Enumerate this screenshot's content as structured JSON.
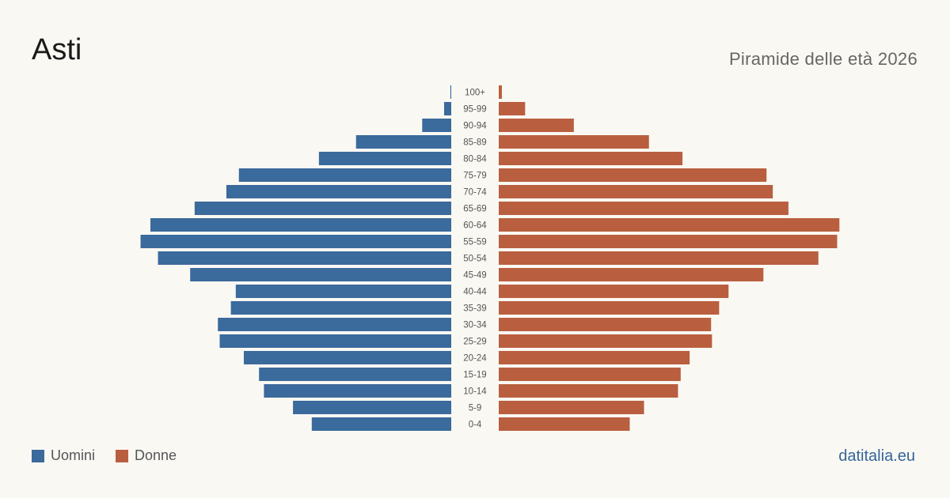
{
  "header": {
    "title": "Asti",
    "subtitle": "Piramide delle età 2026"
  },
  "legend": {
    "men_label": "Uomini",
    "women_label": "Donne"
  },
  "footer": {
    "brand": "datitalia.eu"
  },
  "colors": {
    "men": "#3b6a9c",
    "women": "#b95f3f"
  },
  "chart_data": {
    "type": "bar",
    "orientation": "horizontal-pyramid",
    "categories": [
      "100+",
      "95-99",
      "90-94",
      "85-89",
      "80-84",
      "75-79",
      "70-74",
      "65-69",
      "60-64",
      "55-59",
      "50-54",
      "45-49",
      "40-44",
      "35-39",
      "30-34",
      "25-29",
      "20-24",
      "15-19",
      "10-14",
      "5-9",
      "0-4"
    ],
    "series": [
      {
        "name": "Uomini",
        "values": [
          2,
          16,
          65,
          213,
          296,
          475,
          503,
          574,
          673,
          695,
          656,
          584,
          482,
          493,
          522,
          518,
          464,
          430,
          419,
          354,
          312
        ]
      },
      {
        "name": "Donne",
        "values": [
          7,
          59,
          168,
          336,
          411,
          599,
          613,
          648,
          762,
          757,
          715,
          592,
          514,
          493,
          475,
          477,
          427,
          407,
          401,
          325,
          293
        ]
      }
    ]
  }
}
